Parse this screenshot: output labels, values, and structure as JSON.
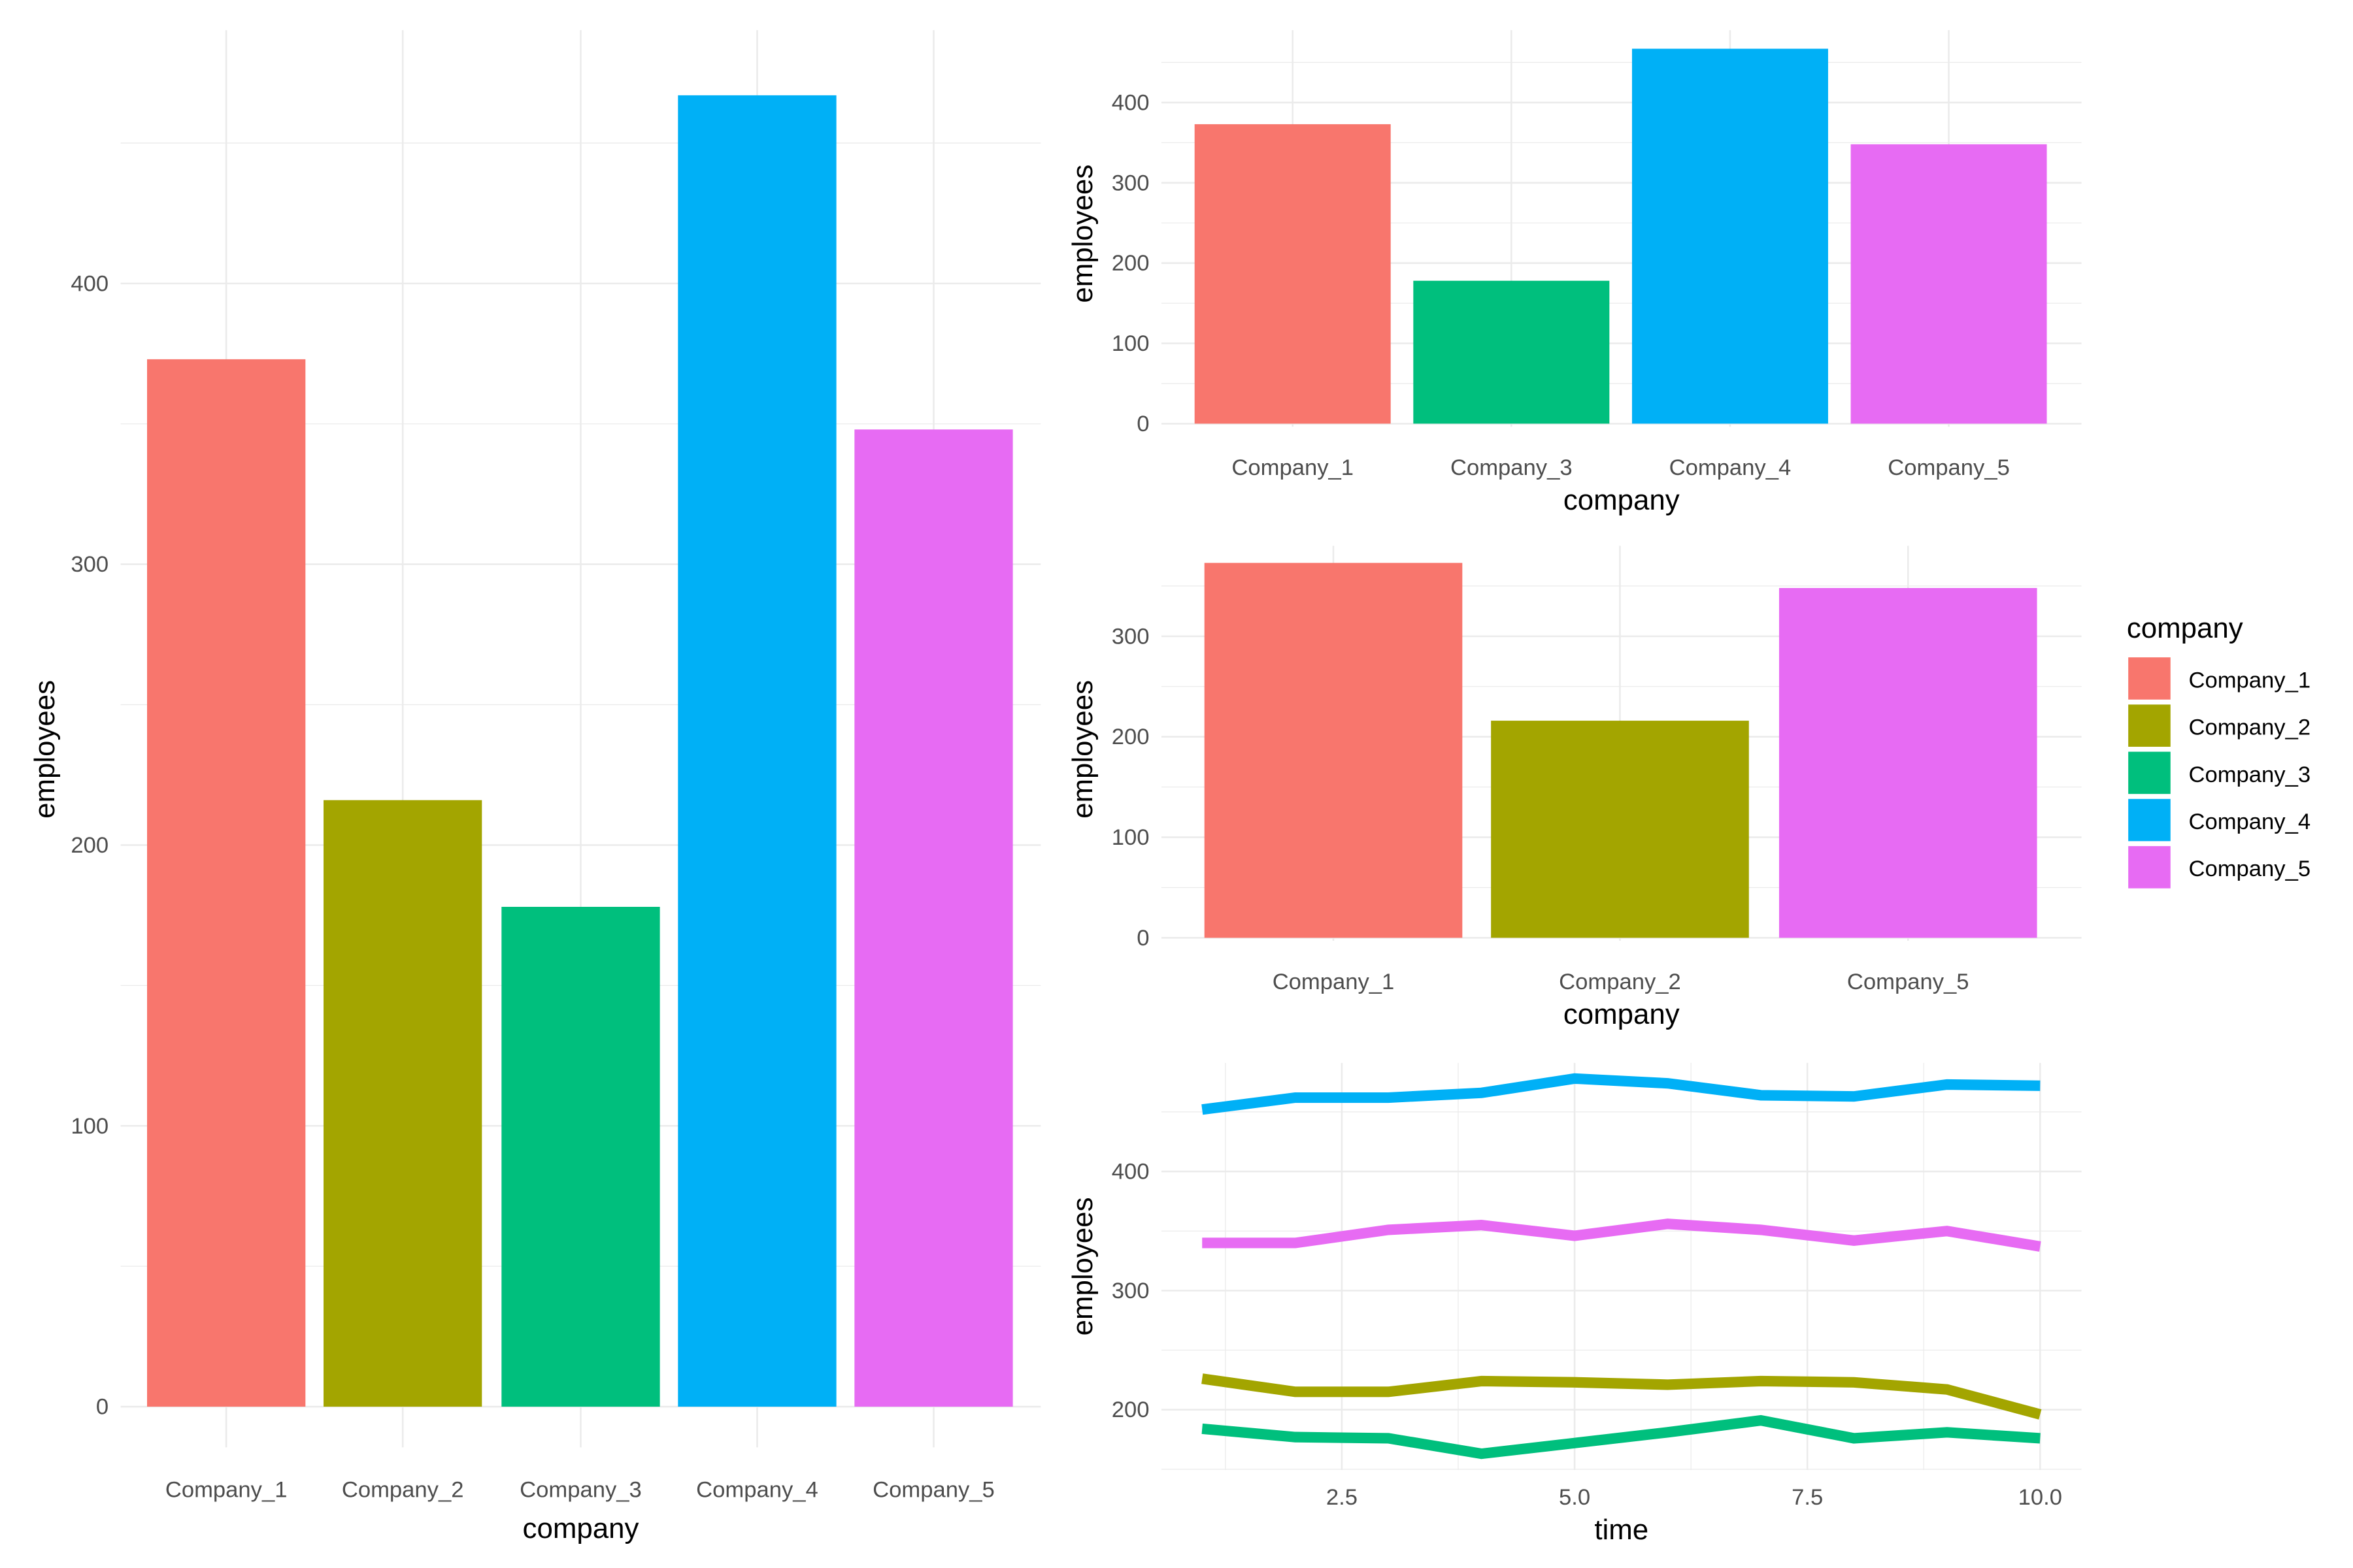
{
  "colors": {
    "Company_1": "#F8766D",
    "Company_2": "#A3A500",
    "Company_3": "#00BF7D",
    "Company_4": "#00B0F6",
    "Company_5": "#E76BF3",
    "grid": "#EBEBEB"
  },
  "legend": {
    "title": "company",
    "items": [
      "Company_1",
      "Company_2",
      "Company_3",
      "Company_4",
      "Company_5"
    ]
  },
  "chart_data": [
    {
      "type": "bar",
      "xlabel": "company",
      "ylabel": "employees",
      "categories": [
        "Company_1",
        "Company_2",
        "Company_3",
        "Company_4",
        "Company_5"
      ],
      "values": [
        373,
        216,
        178,
        467,
        348
      ],
      "yticks": [
        0,
        100,
        200,
        300,
        400
      ],
      "ylim": [
        0,
        490
      ],
      "grid": true
    },
    {
      "type": "bar",
      "xlabel": "company",
      "ylabel": "employees",
      "categories": [
        "Company_1",
        "Company_3",
        "Company_4",
        "Company_5"
      ],
      "values": [
        373,
        178,
        467,
        348
      ],
      "yticks": [
        0,
        100,
        200,
        300,
        400
      ],
      "ylim": [
        0,
        490
      ],
      "grid": true
    },
    {
      "type": "bar",
      "xlabel": "company",
      "ylabel": "employees",
      "categories": [
        "Company_1",
        "Company_2",
        "Company_5"
      ],
      "values": [
        373,
        216,
        348
      ],
      "yticks": [
        0,
        100,
        200,
        300
      ],
      "ylim": [
        0,
        390
      ],
      "grid": true
    },
    {
      "type": "line",
      "xlabel": "time",
      "ylabel": "employees",
      "x": [
        1,
        2,
        3,
        4,
        5,
        6,
        7,
        8,
        9,
        10
      ],
      "xticks": [
        "2.5",
        "5.0",
        "7.5",
        "10.0"
      ],
      "yticks": [
        200,
        300,
        400
      ],
      "grid": true,
      "series": [
        {
          "name": "Company_4",
          "values": [
            452,
            462,
            462,
            466,
            478,
            474,
            464,
            463,
            473,
            472
          ]
        },
        {
          "name": "Company_5",
          "values": [
            340,
            340,
            351,
            355,
            346,
            356,
            351,
            342,
            350,
            337
          ]
        },
        {
          "name": "Company_2",
          "values": [
            226,
            215,
            215,
            224,
            223,
            221,
            224,
            223,
            217,
            196
          ]
        },
        {
          "name": "Company_3",
          "values": [
            184,
            177,
            176,
            163,
            172,
            181,
            191,
            176,
            181,
            176
          ]
        }
      ]
    }
  ]
}
